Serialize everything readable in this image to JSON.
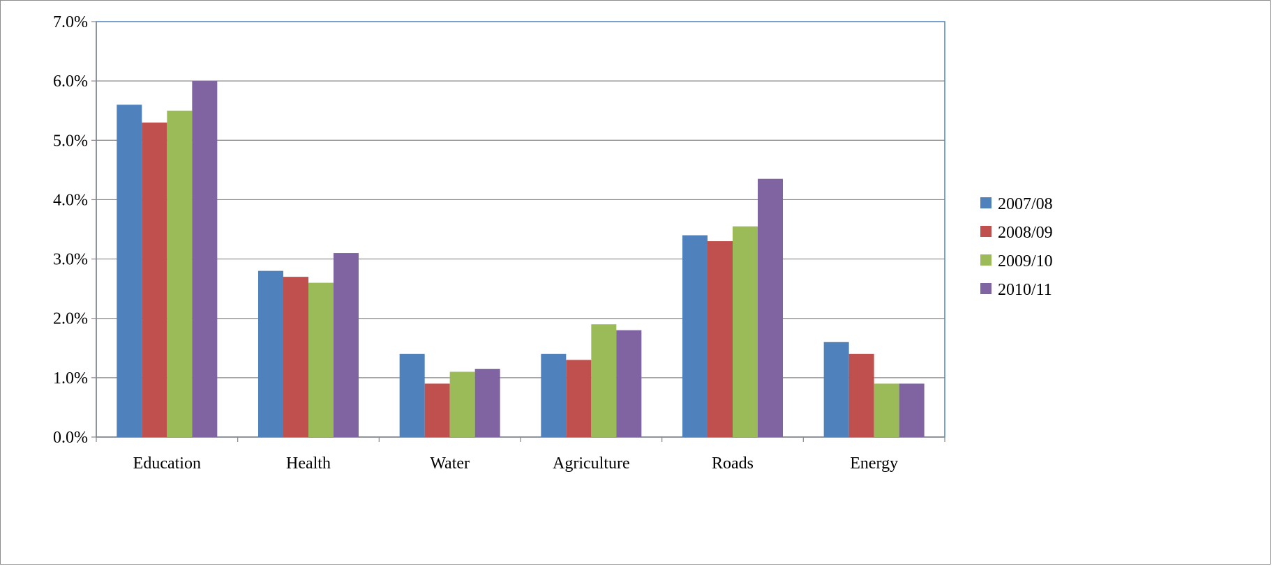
{
  "chart_data": {
    "type": "bar",
    "title": "",
    "xlabel": "",
    "ylabel": "",
    "categories": [
      "Education",
      "Health",
      "Water",
      "Agriculture",
      "Roads",
      "Energy"
    ],
    "series": [
      {
        "name": "2007/08",
        "color": "#4f81bd",
        "values": [
          5.6,
          2.8,
          1.4,
          1.4,
          3.4,
          1.6
        ]
      },
      {
        "name": "2008/09",
        "color": "#c0504d",
        "values": [
          5.3,
          2.7,
          0.9,
          1.3,
          3.3,
          1.4
        ]
      },
      {
        "name": "2009/10",
        "color": "#9bbb59",
        "values": [
          5.5,
          2.6,
          1.1,
          1.9,
          3.55,
          0.9
        ]
      },
      {
        "name": "2010/11",
        "color": "#8064a2",
        "values": [
          6.0,
          3.1,
          1.15,
          1.8,
          4.35,
          0.9
        ]
      }
    ],
    "ylim": [
      0,
      7
    ],
    "y_ticks": [
      {
        "value": 0,
        "label": "0.0%"
      },
      {
        "value": 1,
        "label": "1.0%"
      },
      {
        "value": 2,
        "label": "2.0%"
      },
      {
        "value": 3,
        "label": "3.0%"
      },
      {
        "value": 4,
        "label": "4.0%"
      },
      {
        "value": 5,
        "label": "5.0%"
      },
      {
        "value": 6,
        "label": "6.0%"
      },
      {
        "value": 7,
        "label": "7.0%"
      }
    ],
    "grid": true,
    "legend_position": "right"
  }
}
